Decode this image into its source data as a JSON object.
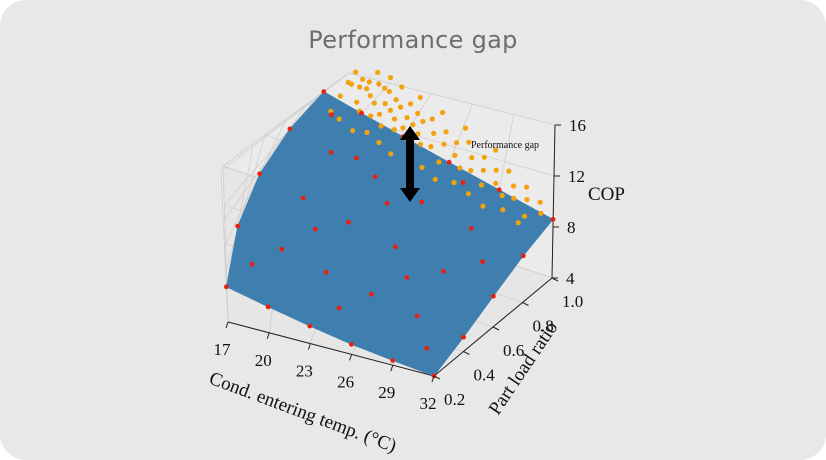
{
  "card": {
    "title": "Performance gap"
  },
  "chart_data": {
    "type": "scatter",
    "projection": "3d",
    "title": "",
    "xlabel": "Cond. entering temp. (°C)",
    "ylabel": "Part load ratio",
    "zlabel": "COP",
    "xlim": [
      17,
      32
    ],
    "ylim": [
      0.2,
      1.0
    ],
    "zlim": [
      4,
      16
    ],
    "x_ticks": [
      "17",
      "20",
      "23",
      "26",
      "29",
      "32"
    ],
    "y_ticks": [
      "0.2",
      "0.4",
      "0.6",
      "0.8",
      "1.0"
    ],
    "z_ticks": [
      "4",
      "8",
      "12",
      "16"
    ],
    "grid": true,
    "annotation": {
      "text": "Performance gap",
      "arrow": "double-headed vertical arrow between measured points and fitted surface"
    },
    "surface": {
      "name": "",
      "color": "#3f7fb0",
      "description": "fitted COP surface; COP rises with part load ratio and falls with condenser entering temperature"
    },
    "series": [
      {
        "name": "",
        "color": "#e8210f",
        "description": "grid points on the fitted surface",
        "points": [
          {
            "x": 17,
            "y": 0.2,
            "z": 6.8
          },
          {
            "x": 17,
            "y": 0.4,
            "z": 9.0
          },
          {
            "x": 17,
            "y": 0.6,
            "z": 10.9
          },
          {
            "x": 17,
            "y": 0.8,
            "z": 12.5
          },
          {
            "x": 17,
            "y": 1.0,
            "z": 13.6
          },
          {
            "x": 20,
            "y": 0.2,
            "z": 6.2
          },
          {
            "x": 20,
            "y": 0.4,
            "z": 8.3
          },
          {
            "x": 20,
            "y": 0.6,
            "z": 10.1
          },
          {
            "x": 20,
            "y": 0.8,
            "z": 11.6
          },
          {
            "x": 20,
            "y": 1.0,
            "z": 12.6
          },
          {
            "x": 23,
            "y": 0.2,
            "z": 5.6
          },
          {
            "x": 23,
            "y": 0.4,
            "z": 7.6
          },
          {
            "x": 23,
            "y": 0.6,
            "z": 9.3
          },
          {
            "x": 23,
            "y": 0.8,
            "z": 10.7
          },
          {
            "x": 23,
            "y": 1.0,
            "z": 11.6
          },
          {
            "x": 26,
            "y": 0.2,
            "z": 5.0
          },
          {
            "x": 26,
            "y": 0.4,
            "z": 6.9
          },
          {
            "x": 26,
            "y": 0.6,
            "z": 8.5
          },
          {
            "x": 26,
            "y": 0.8,
            "z": 9.8
          },
          {
            "x": 26,
            "y": 1.0,
            "z": 10.6
          },
          {
            "x": 29,
            "y": 0.2,
            "z": 4.5
          },
          {
            "x": 29,
            "y": 0.4,
            "z": 6.2
          },
          {
            "x": 29,
            "y": 0.6,
            "z": 7.7
          },
          {
            "x": 29,
            "y": 0.8,
            "z": 8.9
          },
          {
            "x": 29,
            "y": 1.0,
            "z": 9.6
          },
          {
            "x": 32,
            "y": 0.2,
            "z": 4.0
          },
          {
            "x": 32,
            "y": 0.4,
            "z": 5.5
          },
          {
            "x": 32,
            "y": 0.6,
            "z": 6.9
          },
          {
            "x": 32,
            "y": 0.8,
            "z": 8.0
          },
          {
            "x": 32,
            "y": 1.0,
            "z": 8.6
          },
          {
            "x": 18.5,
            "y": 0.3,
            "z": 7.8
          },
          {
            "x": 21.5,
            "y": 0.5,
            "z": 9.4
          },
          {
            "x": 24.5,
            "y": 0.7,
            "z": 10.4
          },
          {
            "x": 27.5,
            "y": 0.9,
            "z": 10.9
          },
          {
            "x": 30.5,
            "y": 0.3,
            "z": 5.0
          },
          {
            "x": 30.5,
            "y": 0.7,
            "z": 8.0
          },
          {
            "x": 18.5,
            "y": 0.9,
            "z": 13.3
          },
          {
            "x": 24.5,
            "y": 0.3,
            "z": 6.4
          },
          {
            "x": 27.5,
            "y": 0.5,
            "z": 7.8
          },
          {
            "x": 21.5,
            "y": 0.8,
            "z": 11.8
          }
        ]
      },
      {
        "name": "",
        "color": "#f2a20c",
        "description": "measured operating points (higher COP than fitted surface)",
        "points": [
          {
            "x": 17.6,
            "y": 0.98,
            "z": 15.4
          },
          {
            "x": 17.9,
            "y": 0.95,
            "z": 15.8
          },
          {
            "x": 18.2,
            "y": 0.97,
            "z": 16.2
          },
          {
            "x": 18.0,
            "y": 0.92,
            "z": 14.9
          },
          {
            "x": 18.5,
            "y": 0.99,
            "z": 15.1
          },
          {
            "x": 18.8,
            "y": 0.94,
            "z": 16.6
          },
          {
            "x": 19.0,
            "y": 0.96,
            "z": 15.6
          },
          {
            "x": 19.2,
            "y": 0.93,
            "z": 14.6
          },
          {
            "x": 19.4,
            "y": 0.98,
            "z": 16.0
          },
          {
            "x": 19.6,
            "y": 0.95,
            "z": 15.2
          },
          {
            "x": 19.8,
            "y": 0.91,
            "z": 14.2
          },
          {
            "x": 20.0,
            "y": 0.97,
            "z": 15.9
          },
          {
            "x": 20.2,
            "y": 0.94,
            "z": 14.8
          },
          {
            "x": 20.4,
            "y": 0.99,
            "z": 15.4
          },
          {
            "x": 20.6,
            "y": 0.92,
            "z": 13.9
          },
          {
            "x": 20.8,
            "y": 0.96,
            "z": 14.7
          },
          {
            "x": 21.0,
            "y": 0.93,
            "z": 14.1
          },
          {
            "x": 21.2,
            "y": 0.98,
            "z": 15.0
          },
          {
            "x": 21.4,
            "y": 0.95,
            "z": 14.4
          },
          {
            "x": 21.6,
            "y": 0.9,
            "z": 13.6
          },
          {
            "x": 21.8,
            "y": 0.97,
            "z": 14.6
          },
          {
            "x": 22.0,
            "y": 0.94,
            "z": 13.9
          },
          {
            "x": 22.2,
            "y": 0.99,
            "z": 14.8
          },
          {
            "x": 22.4,
            "y": 0.92,
            "z": 13.3
          },
          {
            "x": 22.6,
            "y": 0.96,
            "z": 14.0
          },
          {
            "x": 22.8,
            "y": 0.93,
            "z": 13.5
          },
          {
            "x": 23.0,
            "y": 0.98,
            "z": 14.3
          },
          {
            "x": 23.2,
            "y": 0.95,
            "z": 13.7
          },
          {
            "x": 23.4,
            "y": 0.91,
            "z": 13.0
          },
          {
            "x": 23.6,
            "y": 0.97,
            "z": 13.9
          },
          {
            "x": 23.8,
            "y": 0.94,
            "z": 13.2
          },
          {
            "x": 24.0,
            "y": 0.99,
            "z": 14.0
          },
          {
            "x": 24.3,
            "y": 0.92,
            "z": 12.7
          },
          {
            "x": 24.6,
            "y": 0.96,
            "z": 13.3
          },
          {
            "x": 24.9,
            "y": 0.93,
            "z": 12.6
          },
          {
            "x": 25.2,
            "y": 0.98,
            "z": 13.4
          },
          {
            "x": 25.5,
            "y": 0.95,
            "z": 12.8
          },
          {
            "x": 25.8,
            "y": 0.9,
            "z": 12.0
          },
          {
            "x": 26.1,
            "y": 0.97,
            "z": 12.9
          },
          {
            "x": 26.4,
            "y": 0.94,
            "z": 12.3
          },
          {
            "x": 26.7,
            "y": 0.99,
            "z": 12.9
          },
          {
            "x": 27.0,
            "y": 0.92,
            "z": 11.7
          },
          {
            "x": 27.3,
            "y": 0.96,
            "z": 12.2
          },
          {
            "x": 27.6,
            "y": 0.93,
            "z": 11.6
          },
          {
            "x": 27.9,
            "y": 0.98,
            "z": 12.2
          },
          {
            "x": 28.2,
            "y": 0.95,
            "z": 11.6
          },
          {
            "x": 28.5,
            "y": 0.91,
            "z": 11.0
          },
          {
            "x": 28.8,
            "y": 0.97,
            "z": 11.6
          },
          {
            "x": 29.1,
            "y": 0.94,
            "z": 11.0
          },
          {
            "x": 29.4,
            "y": 0.99,
            "z": 11.5
          },
          {
            "x": 29.7,
            "y": 0.92,
            "z": 10.5
          },
          {
            "x": 30.0,
            "y": 0.96,
            "z": 10.9
          },
          {
            "x": 30.3,
            "y": 0.93,
            "z": 10.4
          },
          {
            "x": 30.6,
            "y": 0.98,
            "z": 10.8
          },
          {
            "x": 30.9,
            "y": 0.95,
            "z": 10.3
          },
          {
            "x": 31.2,
            "y": 0.9,
            "z": 9.7
          },
          {
            "x": 31.5,
            "y": 0.97,
            "z": 10.1
          },
          {
            "x": 31.8,
            "y": 0.94,
            "z": 9.7
          },
          {
            "x": 18.3,
            "y": 0.88,
            "z": 13.9
          },
          {
            "x": 19.1,
            "y": 0.87,
            "z": 13.6
          },
          {
            "x": 20.3,
            "y": 0.86,
            "z": 13.1
          },
          {
            "x": 21.1,
            "y": 0.88,
            "z": 13.0
          },
          {
            "x": 22.1,
            "y": 0.87,
            "z": 12.6
          },
          {
            "x": 23.1,
            "y": 0.86,
            "z": 12.1
          },
          {
            "x": 24.1,
            "y": 0.88,
            "z": 12.0
          },
          {
            "x": 25.1,
            "y": 0.87,
            "z": 11.6
          },
          {
            "x": 26.1,
            "y": 0.86,
            "z": 11.1
          },
          {
            "x": 27.1,
            "y": 0.88,
            "z": 11.0
          },
          {
            "x": 28.1,
            "y": 0.87,
            "z": 10.6
          },
          {
            "x": 29.1,
            "y": 0.86,
            "z": 10.1
          },
          {
            "x": 30.1,
            "y": 0.88,
            "z": 10.0
          },
          {
            "x": 31.1,
            "y": 0.87,
            "z": 9.5
          },
          {
            "x": 17.3,
            "y": 0.99,
            "z": 16.4
          },
          {
            "x": 18.6,
            "y": 0.99,
            "z": 16.9
          },
          {
            "x": 19.7,
            "y": 0.99,
            "z": 16.7
          },
          {
            "x": 20.9,
            "y": 0.99,
            "z": 16.1
          },
          {
            "x": 22.5,
            "y": 0.99,
            "z": 15.6
          },
          {
            "x": 24.4,
            "y": 0.99,
            "z": 14.8
          },
          {
            "x": 26.2,
            "y": 0.99,
            "z": 14.0
          },
          {
            "x": 28.4,
            "y": 0.99,
            "z": 12.9
          }
        ]
      }
    ]
  }
}
